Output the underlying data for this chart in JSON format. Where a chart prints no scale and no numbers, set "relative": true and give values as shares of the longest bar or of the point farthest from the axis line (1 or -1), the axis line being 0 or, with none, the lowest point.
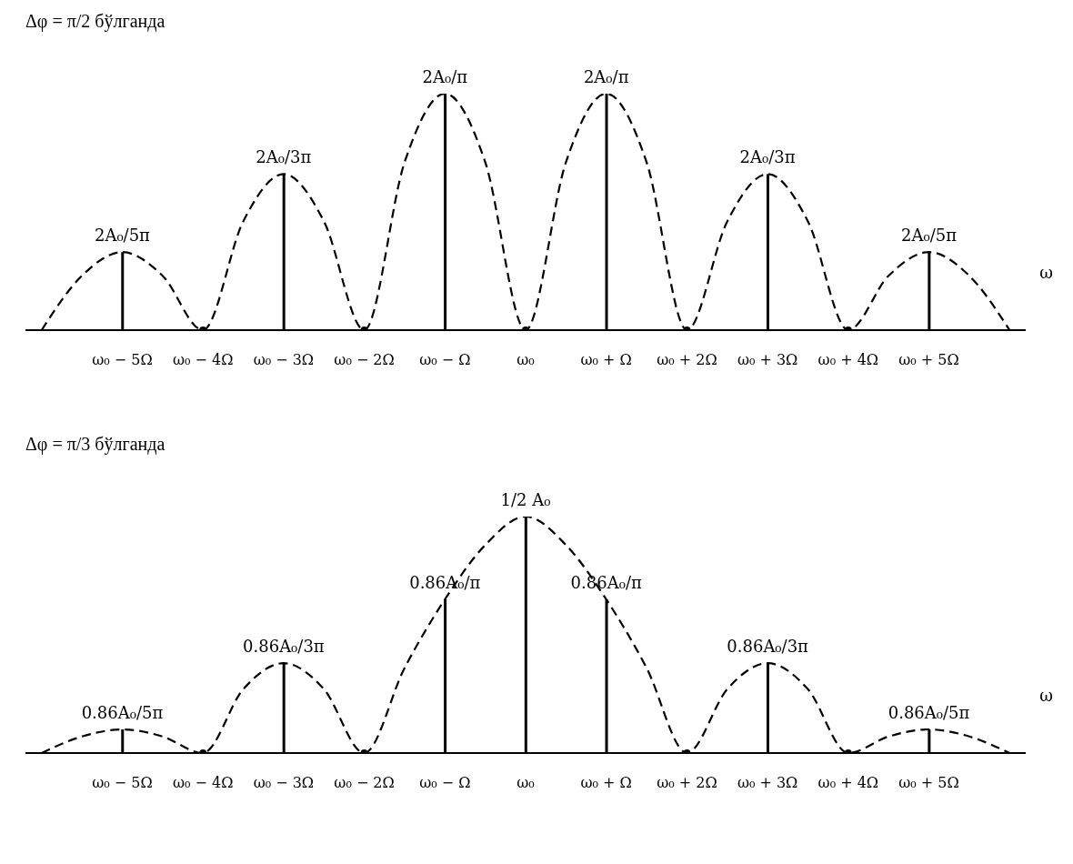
{
  "chart_data": [
    {
      "type": "bar",
      "title": "Δφ = π/2 бўлганда",
      "xlabel": "ω",
      "relative": true,
      "xlim": [
        -6.2,
        6.2
      ],
      "tick_labels": "x",
      "grid": false,
      "legend": false,
      "xticks": [
        {
          "value": -5,
          "label": "ω₀ − 5Ω"
        },
        {
          "value": -4,
          "label": "ω₀ − 4Ω"
        },
        {
          "value": -3,
          "label": "ω₀ − 3Ω"
        },
        {
          "value": -2,
          "label": "ω₀ − 2Ω"
        },
        {
          "value": -1,
          "label": "ω₀ − Ω"
        },
        {
          "value": 0,
          "label": "ω₀"
        },
        {
          "value": 1,
          "label": "ω₀ + Ω"
        },
        {
          "value": 2,
          "label": "ω₀ + 2Ω"
        },
        {
          "value": 3,
          "label": "ω₀ + 3Ω"
        },
        {
          "value": 4,
          "label": "ω₀ + 4Ω"
        },
        {
          "value": 5,
          "label": "ω₀ + 5Ω"
        }
      ],
      "annotations": [
        {
          "text": "2A₀/5π",
          "x": -5,
          "y": 0.33
        },
        {
          "text": "2A₀/3π",
          "x": -3,
          "y": 0.66
        },
        {
          "text": "2A₀/π",
          "x": -1,
          "y": 1
        },
        {
          "text": "2A₀/π",
          "x": 1,
          "y": 1
        },
        {
          "text": "2A₀/3π",
          "x": 3,
          "y": 0.66
        },
        {
          "text": "2A₀/5π",
          "x": 5,
          "y": 0.33
        }
      ],
      "series": [
        {
          "color": "#000000",
          "x": [
            -5,
            -3,
            -1,
            1,
            3,
            5
          ],
          "values": [
            0.33,
            0.66,
            1,
            1,
            0.66,
            0.33
          ]
        },
        {
          "type": "line",
          "color": "#000000",
          "line_style": "dashed",
          "marker": "none",
          "x": [
            -6,
            -5.5,
            -5,
            -4.5,
            -4,
            -3.5,
            -3,
            -2.5,
            -2,
            -1.5,
            -1,
            -0.5,
            0,
            0.5,
            1,
            1.5,
            2,
            2.5,
            3,
            3.5,
            4,
            4.5,
            5,
            5.5,
            6
          ],
          "values": [
            0,
            0.23,
            0.33,
            0.23,
            0,
            0.46,
            0.66,
            0.46,
            0,
            0.71,
            1,
            0.71,
            0,
            0.71,
            1,
            0.71,
            0,
            0.46,
            0.66,
            0.46,
            0,
            0.23,
            0.33,
            0.23,
            0
          ]
        },
        {
          "type": "scatter",
          "color": "#000000",
          "marker": "circle",
          "x": [
            -4,
            -2,
            0,
            2,
            4
          ],
          "values": [
            0,
            0,
            0,
            0,
            0
          ]
        }
      ]
    },
    {
      "type": "bar",
      "title": "Δφ = π/3 бўлганда",
      "xlabel": "ω",
      "relative": true,
      "xlim": [
        -6.2,
        6.2
      ],
      "tick_labels": "x",
      "grid": false,
      "legend": false,
      "xticks": [
        {
          "value": -5,
          "label": "ω₀ − 5Ω"
        },
        {
          "value": -4,
          "label": "ω₀ − 4Ω"
        },
        {
          "value": -3,
          "label": "ω₀ − 3Ω"
        },
        {
          "value": -2,
          "label": "ω₀ − 2Ω"
        },
        {
          "value": -1,
          "label": "ω₀ − Ω"
        },
        {
          "value": 0,
          "label": "ω₀"
        },
        {
          "value": 1,
          "label": "ω₀ + Ω"
        },
        {
          "value": 2,
          "label": "ω₀ + 2Ω"
        },
        {
          "value": 3,
          "label": "ω₀ + 3Ω"
        },
        {
          "value": 4,
          "label": "ω₀ + 4Ω"
        },
        {
          "value": 5,
          "label": "ω₀ + 5Ω"
        }
      ],
      "annotations": [
        {
          "text": "0.86A₀/5π",
          "x": -5,
          "y": 0.1
        },
        {
          "text": "0.86A₀/3π",
          "x": -3,
          "y": 0.38
        },
        {
          "text": "0.86A₀/π",
          "x": -1,
          "y": 0.65
        },
        {
          "text": "1/2 A₀",
          "x": 0,
          "y": 1
        },
        {
          "text": "0.86A₀/π",
          "x": 1,
          "y": 0.65
        },
        {
          "text": "0.86A₀/3π",
          "x": 3,
          "y": 0.38
        },
        {
          "text": "0.86A₀/5π",
          "x": 5,
          "y": 0.1
        }
      ],
      "series": [
        {
          "color": "#000000",
          "x": [
            -5,
            -3,
            -1,
            0,
            1,
            3,
            5
          ],
          "values": [
            0.1,
            0.38,
            0.65,
            1,
            0.65,
            0.38,
            0.1
          ]
        },
        {
          "type": "line",
          "color": "#000000",
          "line_style": "dashed",
          "marker": "none",
          "x": [
            -6,
            -5.5,
            -5,
            -4.5,
            -4,
            -3.5,
            -3,
            -2.5,
            -2,
            -1.5,
            -1,
            -0.5,
            0,
            0.5,
            1,
            1.5,
            2,
            2.5,
            3,
            3.5,
            4,
            4.5,
            5,
            5.5,
            6
          ],
          "values": [
            0,
            0.07,
            0.1,
            0.07,
            0,
            0.27,
            0.38,
            0.27,
            0,
            0.36,
            0.65,
            0.88,
            1,
            0.88,
            0.65,
            0.36,
            0,
            0.27,
            0.38,
            0.27,
            0,
            0.07,
            0.1,
            0.07,
            0
          ]
        },
        {
          "type": "scatter",
          "color": "#000000",
          "marker": "circle",
          "x": [
            -4,
            -2,
            2,
            4
          ],
          "values": [
            0,
            0,
            0,
            0
          ]
        }
      ]
    }
  ]
}
